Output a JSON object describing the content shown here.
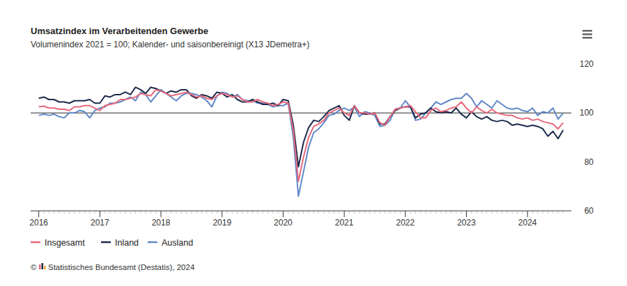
{
  "chart_data": {
    "type": "line",
    "title": "Umsatzindex im Verarbeitenden Gewerbe",
    "subtitle": "Volumenindex 2021 = 100; Kalender- und saisonbereinigt (X13 JDemetra+)",
    "credits": "© Statistisches Bundesamt (Destatis), 2024",
    "categories": [
      "2016",
      null,
      null,
      null,
      null,
      null,
      null,
      null,
      null,
      null,
      null,
      null,
      "2017",
      null,
      null,
      null,
      null,
      null,
      null,
      null,
      null,
      null,
      null,
      null,
      "2018",
      null,
      null,
      null,
      null,
      null,
      null,
      null,
      null,
      null,
      null,
      null,
      "2019",
      null,
      null,
      null,
      null,
      null,
      null,
      null,
      null,
      null,
      null,
      null,
      "2020",
      null,
      null,
      null,
      null,
      null,
      null,
      null,
      null,
      null,
      null,
      null,
      "2021",
      null,
      null,
      null,
      null,
      null,
      null,
      null,
      null,
      null,
      null,
      null,
      "2022",
      null,
      null,
      null,
      null,
      null,
      null,
      null,
      null,
      null,
      null,
      null,
      "2023",
      null,
      null,
      null,
      null,
      null,
      null,
      null,
      null,
      null,
      null,
      null,
      "2024",
      null,
      null,
      null,
      null,
      null,
      null,
      null
    ],
    "series": [
      {
        "name": "Insgesamt",
        "color": "#e8687a",
        "values": [
          102.5,
          102.8,
          102,
          102,
          101.5,
          101.5,
          101,
          102.5,
          102.5,
          103,
          103,
          102,
          101,
          103,
          103.5,
          104,
          105.5,
          105.5,
          106,
          106.5,
          108,
          107.5,
          107,
          109.5,
          109,
          108,
          107,
          107.5,
          108,
          108.5,
          107.5,
          106.5,
          107,
          106,
          105.5,
          107,
          108,
          107.5,
          106.5,
          107,
          105.5,
          104.5,
          104.5,
          105.5,
          104.5,
          104,
          103,
          103.5,
          104.5,
          104,
          93,
          72,
          82,
          90,
          94.5,
          95.5,
          97,
          100,
          101,
          102,
          100,
          99,
          103,
          100,
          100,
          99.5,
          100,
          96,
          95,
          98.5,
          101.5,
          102,
          102.5,
          103,
          100.5,
          98,
          98,
          101,
          102,
          100.5,
          101,
          102,
          102.5,
          104.5,
          102,
          100,
          102.5,
          101,
          100,
          101.5,
          100,
          99.5,
          99,
          99,
          98,
          97.5,
          98,
          97,
          97.5,
          96.5,
          96,
          95.5,
          93.5,
          96
        ]
      },
      {
        "name": "Inland",
        "color": "#1b2a4a",
        "values": [
          106,
          106.5,
          105.5,
          105.5,
          104.5,
          104.5,
          104,
          105,
          105,
          105,
          105.5,
          104,
          104,
          107,
          106.5,
          107.5,
          107.5,
          108.5,
          107.5,
          110.5,
          109.5,
          108,
          110.5,
          110,
          109,
          108,
          109,
          108.5,
          109.5,
          109.5,
          107,
          106,
          107.5,
          107,
          106,
          108.5,
          108,
          106.5,
          107.5,
          105.5,
          104.5,
          104.5,
          105.5,
          104.5,
          103.5,
          103.5,
          104,
          103,
          105.5,
          105,
          95,
          78,
          88,
          94,
          97,
          96.5,
          98.5,
          101,
          102,
          103,
          99,
          97,
          103,
          100,
          99.5,
          99.5,
          100,
          95.5,
          95.5,
          98.5,
          101,
          102,
          102.5,
          102.5,
          98,
          99.5,
          100,
          102,
          100.5,
          100,
          100.5,
          100,
          102,
          99.5,
          98,
          100.5,
          98.5,
          97.5,
          98.5,
          97,
          96.5,
          97,
          96.5,
          95,
          95.5,
          95,
          94.5,
          95,
          94.5,
          93.5,
          90.5,
          92.5,
          89.5,
          93
        ]
      },
      {
        "name": "Ausland",
        "color": "#6088c8",
        "values": [
          99,
          99.5,
          99,
          99.5,
          98.5,
          98,
          100,
          100,
          101,
          100.5,
          98,
          101,
          102,
          102.5,
          104,
          104,
          104.5,
          105.5,
          106.5,
          105,
          108.5,
          107.5,
          104.5,
          107,
          109.5,
          108,
          106.5,
          105,
          107,
          108,
          108,
          107.5,
          106.5,
          105,
          102.5,
          107,
          108.5,
          108,
          106.5,
          107.5,
          105.5,
          105,
          105,
          104,
          104,
          103.5,
          102.5,
          103,
          103,
          104,
          90,
          66,
          76,
          86,
          92,
          93.5,
          96,
          99,
          99.5,
          101,
          102,
          101,
          102.5,
          98.5,
          100.5,
          100,
          99,
          94.5,
          95,
          97,
          101.5,
          102,
          105,
          102.5,
          97,
          97.5,
          100,
          102,
          104.5,
          103.5,
          104.5,
          105.5,
          106,
          106,
          108,
          106,
          102.5,
          105,
          103.5,
          102,
          105,
          103.5,
          102,
          101.5,
          102,
          101,
          100.5,
          102,
          99,
          100.5,
          100,
          102,
          97.5,
          100
        ]
      }
    ],
    "ylim": [
      60,
      120
    ],
    "yticks": [
      60,
      80,
      100,
      120
    ],
    "reference_line": 100,
    "grid": false,
    "legend": "bottom"
  }
}
